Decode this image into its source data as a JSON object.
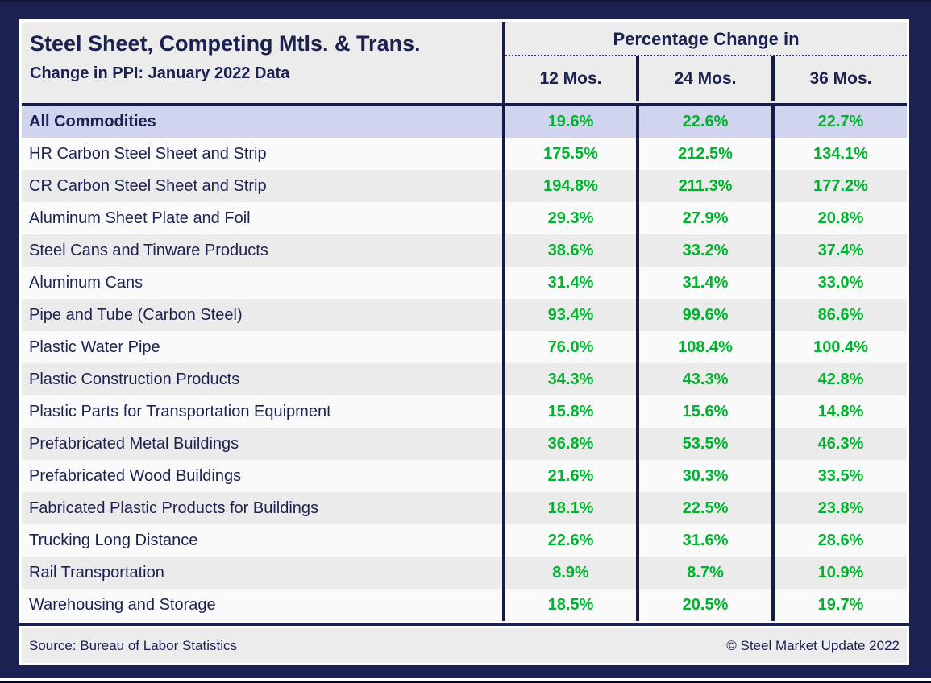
{
  "chart_data": {
    "type": "table",
    "title": "Steel Sheet, Competing Mtls. & Trans.",
    "subtitle": "Change in PPI: January 2022 Data",
    "group_header": "Percentage Change in",
    "columns": [
      "12 Mos.",
      "24 Mos.",
      "36 Mos."
    ],
    "rows": [
      {
        "label": "All Commodities",
        "values": [
          "19.6%",
          "22.6%",
          "22.7%"
        ],
        "highlight": true
      },
      {
        "label": "HR Carbon Steel Sheet and Strip",
        "values": [
          "175.5%",
          "212.5%",
          "134.1%"
        ],
        "highlight": false
      },
      {
        "label": "CR Carbon Steel Sheet and Strip",
        "values": [
          "194.8%",
          "211.3%",
          "177.2%"
        ],
        "highlight": false
      },
      {
        "label": "Aluminum Sheet Plate and Foil",
        "values": [
          "29.3%",
          "27.9%",
          "20.8%"
        ],
        "highlight": false
      },
      {
        "label": "Steel Cans and Tinware Products",
        "values": [
          "38.6%",
          "33.2%",
          "37.4%"
        ],
        "highlight": false
      },
      {
        "label": "Aluminum Cans",
        "values": [
          "31.4%",
          "31.4%",
          "33.0%"
        ],
        "highlight": false
      },
      {
        "label": "Pipe and Tube (Carbon Steel)",
        "values": [
          "93.4%",
          "99.6%",
          "86.6%"
        ],
        "highlight": false
      },
      {
        "label": "Plastic Water Pipe",
        "values": [
          "76.0%",
          "108.4%",
          "100.4%"
        ],
        "highlight": false
      },
      {
        "label": "Plastic Construction Products",
        "values": [
          "34.3%",
          "43.3%",
          "42.8%"
        ],
        "highlight": false
      },
      {
        "label": "Plastic Parts for Transportation Equipment",
        "values": [
          "15.8%",
          "15.6%",
          "14.8%"
        ],
        "highlight": false
      },
      {
        "label": "Prefabricated Metal Buildings",
        "values": [
          "36.8%",
          "53.5%",
          "46.3%"
        ],
        "highlight": false
      },
      {
        "label": "Prefabricated Wood Buildings",
        "values": [
          "21.6%",
          "30.3%",
          "33.5%"
        ],
        "highlight": false
      },
      {
        "label": "Fabricated Plastic Products for Buildings",
        "values": [
          "18.1%",
          "22.5%",
          "23.8%"
        ],
        "highlight": false
      },
      {
        "label": "Trucking Long Distance",
        "values": [
          "22.6%",
          "31.6%",
          "28.6%"
        ],
        "highlight": false
      },
      {
        "label": "Rail Transportation",
        "values": [
          "8.9%",
          "8.7%",
          "10.9%"
        ],
        "highlight": false
      },
      {
        "label": "Warehousing and Storage",
        "values": [
          "18.5%",
          "20.5%",
          "19.7%"
        ],
        "highlight": false
      }
    ],
    "layout": {
      "grid": "off",
      "value_color_note": "all percentage values rendered green"
    }
  },
  "footer": {
    "source": "Source: Bureau of Labor Statistics",
    "copyright": "© Steel Market Update 2022"
  },
  "colors": {
    "frame_navy": "#1b2150",
    "divider_navy": "#171c47",
    "panel_gray": "#ececec",
    "row_light": "#fafafa",
    "row_shade": "#ebebeb",
    "highlight_lavender": "#d1d4ee",
    "text_navy": "#1b2150",
    "value_green": "#00b22d",
    "border_white": "#ffffff"
  }
}
